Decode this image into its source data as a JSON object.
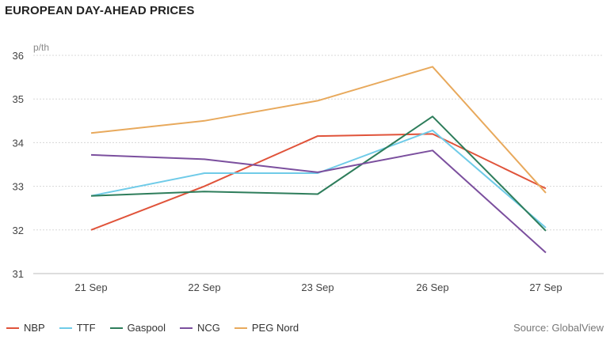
{
  "title": "EUROPEAN DAY-AHEAD PRICES",
  "source": "Source: GlobalView",
  "chart_data": {
    "type": "line",
    "title": "EUROPEAN DAY-AHEAD PRICES",
    "ylabel": "p/th",
    "xlabel": "",
    "ylim": [
      31,
      36
    ],
    "yticks": [
      31,
      32,
      33,
      34,
      35,
      36
    ],
    "categories": [
      "21 Sep",
      "22 Sep",
      "23 Sep",
      "26 Sep",
      "27 Sep"
    ],
    "grid": true,
    "legend": "bottom-left",
    "series": [
      {
        "name": "NBP",
        "color": "#e0533a",
        "values": [
          32.0,
          33.0,
          34.15,
          34.2,
          32.95
        ]
      },
      {
        "name": "TTF",
        "color": "#6fcbe8",
        "values": [
          32.78,
          33.3,
          33.3,
          34.28,
          32.05
        ]
      },
      {
        "name": "Gaspool",
        "color": "#2e7d5b",
        "values": [
          32.78,
          32.88,
          32.82,
          34.6,
          31.98
        ]
      },
      {
        "name": "NCG",
        "color": "#7b4f9e",
        "values": [
          33.72,
          33.62,
          33.32,
          33.82,
          31.48
        ]
      },
      {
        "name": "PEG Nord",
        "color": "#e8a95c",
        "values": [
          34.22,
          34.5,
          34.96,
          35.74,
          32.85
        ]
      }
    ]
  }
}
